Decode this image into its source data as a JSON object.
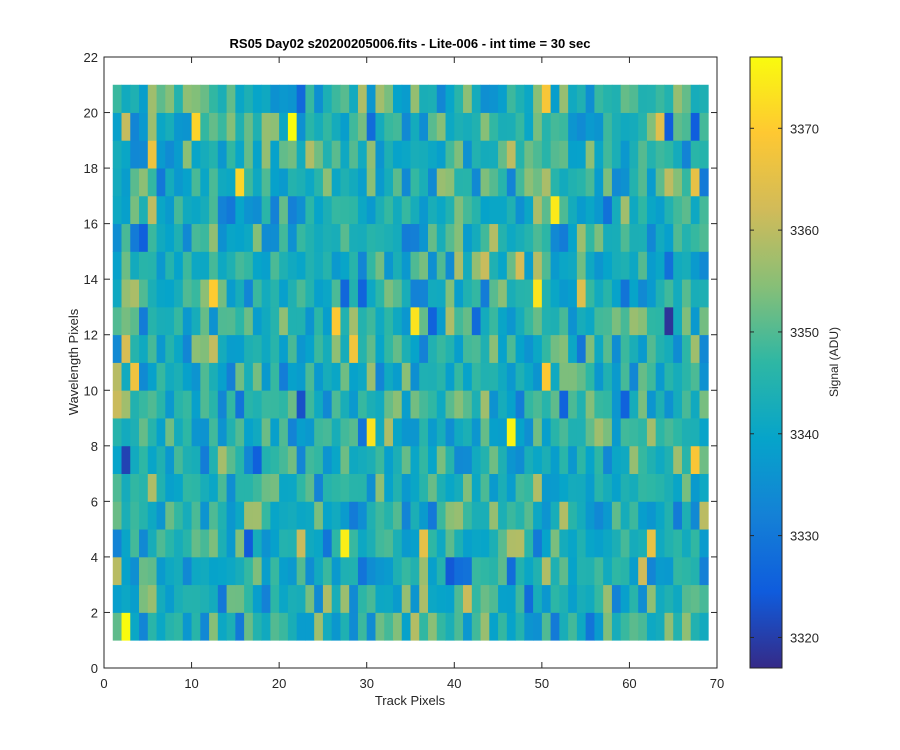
{
  "chart_data": {
    "type": "heatmap",
    "title": "RS05 Day02  s20200205006.fits - Lite-006 - int time = 30 sec",
    "xlabel": "Track Pixels",
    "ylabel": "Wavelength Pixels",
    "xlim": [
      0,
      70
    ],
    "ylim": [
      0,
      22
    ],
    "xticks": [
      0,
      10,
      20,
      30,
      40,
      50,
      60,
      70
    ],
    "yticks": [
      0,
      2,
      4,
      6,
      8,
      10,
      12,
      14,
      16,
      18,
      20,
      22
    ],
    "x_range": [
      1,
      69
    ],
    "y_range": [
      1,
      21
    ],
    "colorbar": {
      "label": "Signal (ADU)",
      "min": 3317,
      "max": 3377,
      "ticks": [
        3320,
        3330,
        3340,
        3350,
        3360,
        3370
      ],
      "colormap": "parula",
      "colors": [
        "#352a87",
        "#0f5cdd",
        "#1481d6",
        "#06a4ca",
        "#2eb7a4",
        "#87bf77",
        "#d1bb59",
        "#fec832",
        "#f9fb0e"
      ]
    },
    "notes": "Pixel values are noise around ~3345 ADU with sparse bright (~3370) and dark (~3320) pixels; exact per-pixel values not legible.",
    "seed": 20200205
  }
}
